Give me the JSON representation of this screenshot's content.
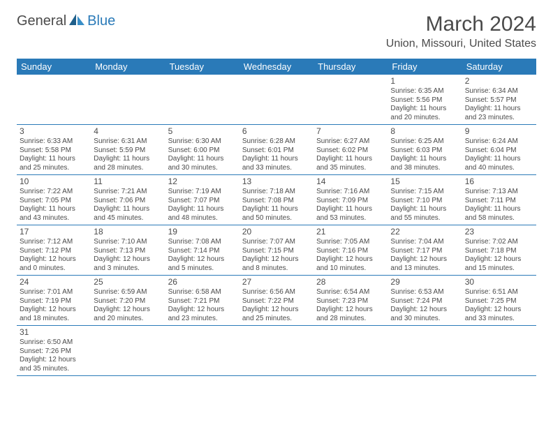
{
  "logo": {
    "text1": "General",
    "text2": "Blue"
  },
  "title": "March 2024",
  "location": "Union, Missouri, United States",
  "colors": {
    "header_bg": "#2a7ab8",
    "header_fg": "#ffffff",
    "text": "#4a4a4a",
    "rule": "#2a7ab8",
    "page_bg": "#ffffff"
  },
  "dayHeaders": [
    "Sunday",
    "Monday",
    "Tuesday",
    "Wednesday",
    "Thursday",
    "Friday",
    "Saturday"
  ],
  "weeks": [
    [
      null,
      null,
      null,
      null,
      null,
      {
        "n": "1",
        "r": "6:35 AM",
        "s": "5:56 PM",
        "d": "11 hours and 20 minutes."
      },
      {
        "n": "2",
        "r": "6:34 AM",
        "s": "5:57 PM",
        "d": "11 hours and 23 minutes."
      }
    ],
    [
      {
        "n": "3",
        "r": "6:33 AM",
        "s": "5:58 PM",
        "d": "11 hours and 25 minutes."
      },
      {
        "n": "4",
        "r": "6:31 AM",
        "s": "5:59 PM",
        "d": "11 hours and 28 minutes."
      },
      {
        "n": "5",
        "r": "6:30 AM",
        "s": "6:00 PM",
        "d": "11 hours and 30 minutes."
      },
      {
        "n": "6",
        "r": "6:28 AM",
        "s": "6:01 PM",
        "d": "11 hours and 33 minutes."
      },
      {
        "n": "7",
        "r": "6:27 AM",
        "s": "6:02 PM",
        "d": "11 hours and 35 minutes."
      },
      {
        "n": "8",
        "r": "6:25 AM",
        "s": "6:03 PM",
        "d": "11 hours and 38 minutes."
      },
      {
        "n": "9",
        "r": "6:24 AM",
        "s": "6:04 PM",
        "d": "11 hours and 40 minutes."
      }
    ],
    [
      {
        "n": "10",
        "r": "7:22 AM",
        "s": "7:05 PM",
        "d": "11 hours and 43 minutes."
      },
      {
        "n": "11",
        "r": "7:21 AM",
        "s": "7:06 PM",
        "d": "11 hours and 45 minutes."
      },
      {
        "n": "12",
        "r": "7:19 AM",
        "s": "7:07 PM",
        "d": "11 hours and 48 minutes."
      },
      {
        "n": "13",
        "r": "7:18 AM",
        "s": "7:08 PM",
        "d": "11 hours and 50 minutes."
      },
      {
        "n": "14",
        "r": "7:16 AM",
        "s": "7:09 PM",
        "d": "11 hours and 53 minutes."
      },
      {
        "n": "15",
        "r": "7:15 AM",
        "s": "7:10 PM",
        "d": "11 hours and 55 minutes."
      },
      {
        "n": "16",
        "r": "7:13 AM",
        "s": "7:11 PM",
        "d": "11 hours and 58 minutes."
      }
    ],
    [
      {
        "n": "17",
        "r": "7:12 AM",
        "s": "7:12 PM",
        "d": "12 hours and 0 minutes."
      },
      {
        "n": "18",
        "r": "7:10 AM",
        "s": "7:13 PM",
        "d": "12 hours and 3 minutes."
      },
      {
        "n": "19",
        "r": "7:08 AM",
        "s": "7:14 PM",
        "d": "12 hours and 5 minutes."
      },
      {
        "n": "20",
        "r": "7:07 AM",
        "s": "7:15 PM",
        "d": "12 hours and 8 minutes."
      },
      {
        "n": "21",
        "r": "7:05 AM",
        "s": "7:16 PM",
        "d": "12 hours and 10 minutes."
      },
      {
        "n": "22",
        "r": "7:04 AM",
        "s": "7:17 PM",
        "d": "12 hours and 13 minutes."
      },
      {
        "n": "23",
        "r": "7:02 AM",
        "s": "7:18 PM",
        "d": "12 hours and 15 minutes."
      }
    ],
    [
      {
        "n": "24",
        "r": "7:01 AM",
        "s": "7:19 PM",
        "d": "12 hours and 18 minutes."
      },
      {
        "n": "25",
        "r": "6:59 AM",
        "s": "7:20 PM",
        "d": "12 hours and 20 minutes."
      },
      {
        "n": "26",
        "r": "6:58 AM",
        "s": "7:21 PM",
        "d": "12 hours and 23 minutes."
      },
      {
        "n": "27",
        "r": "6:56 AM",
        "s": "7:22 PM",
        "d": "12 hours and 25 minutes."
      },
      {
        "n": "28",
        "r": "6:54 AM",
        "s": "7:23 PM",
        "d": "12 hours and 28 minutes."
      },
      {
        "n": "29",
        "r": "6:53 AM",
        "s": "7:24 PM",
        "d": "12 hours and 30 minutes."
      },
      {
        "n": "30",
        "r": "6:51 AM",
        "s": "7:25 PM",
        "d": "12 hours and 33 minutes."
      }
    ],
    [
      {
        "n": "31",
        "r": "6:50 AM",
        "s": "7:26 PM",
        "d": "12 hours and 35 minutes."
      },
      null,
      null,
      null,
      null,
      null,
      null
    ]
  ],
  "labels": {
    "sunrise": "Sunrise: ",
    "sunset": "Sunset: ",
    "daylight": "Daylight: "
  }
}
